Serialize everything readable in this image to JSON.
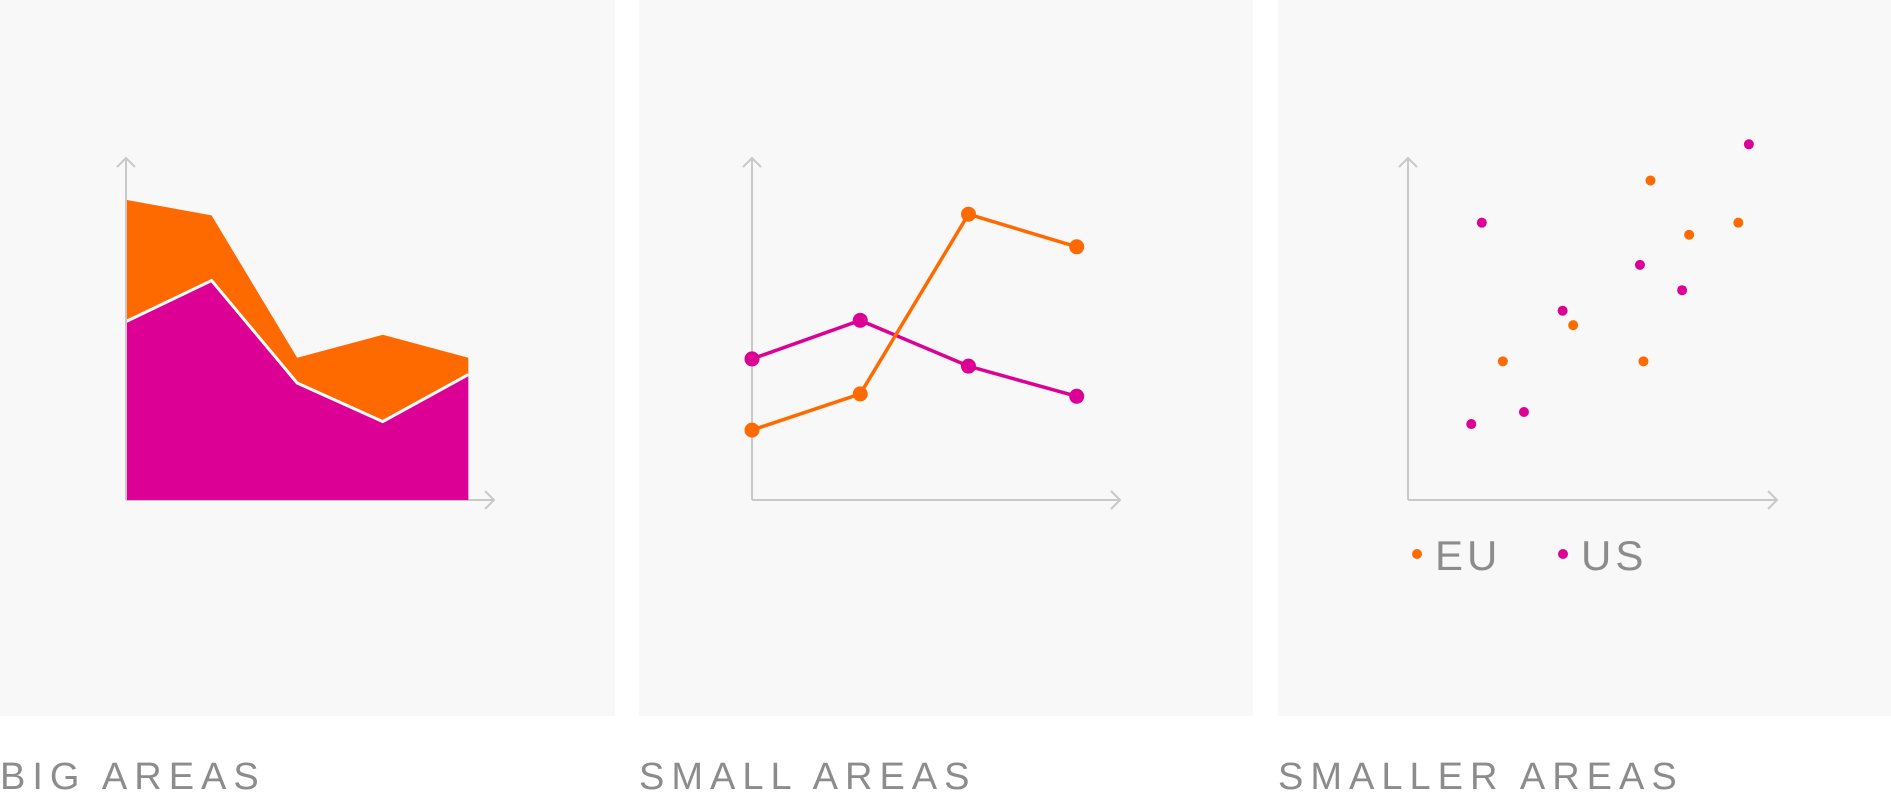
{
  "colors": {
    "eu": "#ff6a00",
    "us": "#dd0094",
    "axis": "#c8c8c8",
    "panel": "#f8f8f8",
    "caption": "#8c8c8c"
  },
  "captions": {
    "big": "BIG AREAS",
    "small": "SMALL AREAS",
    "smaller": "SMALLER AREAS"
  },
  "legend": {
    "eu": "EU",
    "us": "US"
  },
  "chart_data": [
    {
      "type": "area",
      "stacked": true,
      "x": [
        0,
        1,
        2,
        3,
        4
      ],
      "series": [
        {
          "values": [
            1.48,
            1.82,
            0.97,
            0.65,
            1.04
          ]
        },
        {
          "values": [
            1.01,
            0.54,
            0.21,
            0.72,
            0.14
          ]
        }
      ],
      "xlim": [
        0,
        4.3
      ],
      "ylim": [
        0,
        3.45
      ]
    },
    {
      "type": "line",
      "x": [
        0,
        1,
        2,
        3
      ],
      "series": [
        {
          "values": [
            0.58,
            0.88,
            2.37,
            2.1
          ]
        },
        {
          "values": [
            1.17,
            1.49,
            1.11,
            0.86
          ]
        }
      ],
      "xlim": [
        0,
        3.4
      ],
      "ylim": [
        0,
        3.45
      ]
    },
    {
      "type": "scatter",
      "series": [
        {
          "name": "EU",
          "points": [
            [
              0.27,
              1.15
            ],
            [
              0.47,
              1.45
            ],
            [
              0.69,
              2.65
            ],
            [
              0.67,
              1.15
            ],
            [
              0.8,
              2.2
            ],
            [
              0.94,
              2.3
            ]
          ]
        },
        {
          "name": "US",
          "points": [
            [
              0.21,
              2.3
            ],
            [
              0.18,
              0.63
            ],
            [
              0.33,
              0.73
            ],
            [
              0.44,
              1.57
            ],
            [
              0.66,
              1.95
            ],
            [
              0.78,
              1.74
            ],
            [
              0.97,
              2.95
            ]
          ]
        }
      ],
      "xlim": [
        0,
        1.05
      ],
      "ylim": [
        0,
        3.45
      ]
    }
  ]
}
